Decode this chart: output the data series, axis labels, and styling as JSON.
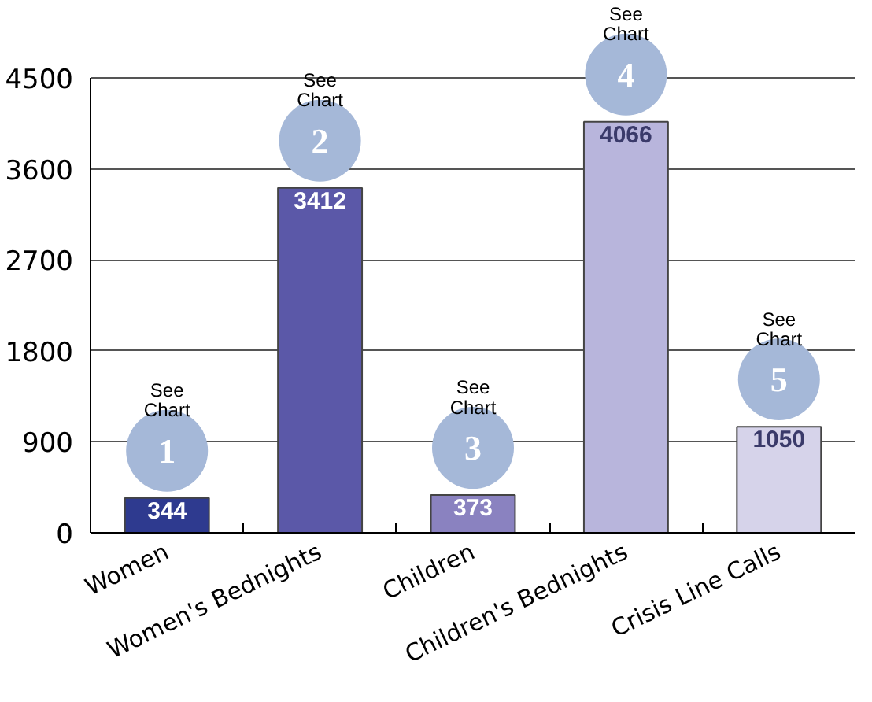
{
  "chart_data": {
    "type": "bar",
    "categories": [
      "Women",
      "Women's Bednights",
      "Children",
      "Children's Bednights",
      "Crisis Line Calls"
    ],
    "values": [
      344,
      3412,
      373,
      4066,
      1050
    ],
    "colors": [
      "#2e3a8f",
      "#5b58a8",
      "#8a82c0",
      "#b8b5dc",
      "#d6d3ea"
    ],
    "ylim": [
      0,
      4500
    ],
    "yticks": [
      0,
      900,
      1800,
      2700,
      3600,
      4500
    ],
    "grid": "y",
    "data_labels": true,
    "annotations": [
      "1",
      "See Chart",
      "2",
      "See Chart",
      "3",
      "See Chart",
      "4",
      "See Chart",
      "5",
      "See Chart"
    ]
  }
}
